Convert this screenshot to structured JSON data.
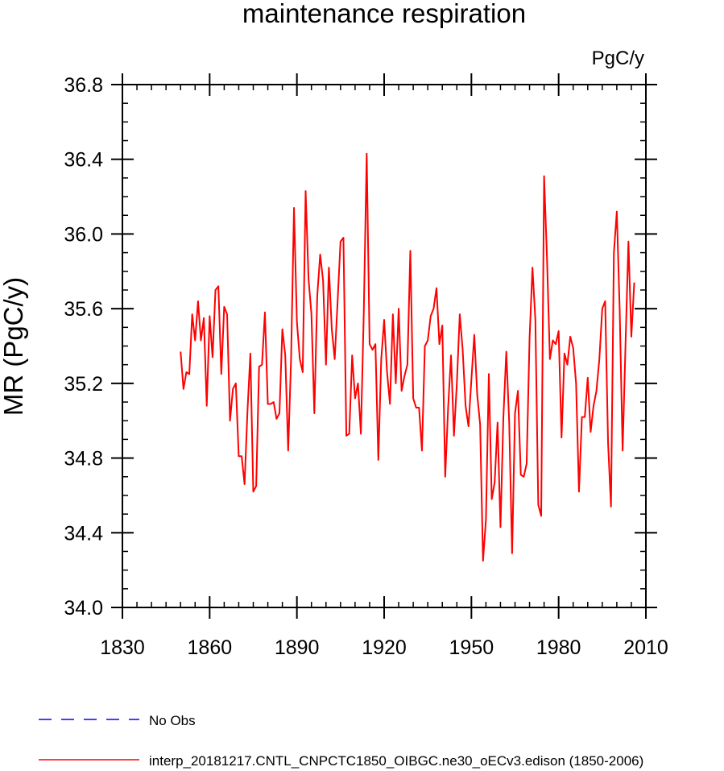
{
  "chart_data": {
    "type": "line",
    "title": "maintenance respiration",
    "units_label": "PgC/y",
    "ylabel": "MR  (PgC/y)",
    "xlabel": "",
    "xlim": [
      1830,
      2010
    ],
    "ylim": [
      34.0,
      36.8
    ],
    "x_ticks": [
      1830,
      1860,
      1890,
      1920,
      1950,
      1980,
      2010
    ],
    "x_tick_labels": [
      "1830",
      "1860",
      "1890",
      "1920",
      "1950",
      "1980",
      "2010"
    ],
    "x_minor_step": 5,
    "y_ticks": [
      34.0,
      34.4,
      34.8,
      35.2,
      35.6,
      36.0,
      36.4,
      36.8
    ],
    "y_tick_labels": [
      "34.0",
      "34.4",
      "34.8",
      "35.2",
      "35.6",
      "36.0",
      "36.4",
      "36.8"
    ],
    "y_minor_step": 0.1,
    "grid": false,
    "legend_position": "bottom-left",
    "legend": [
      {
        "label": "No Obs",
        "color": "#0000ff",
        "style": "dashed"
      },
      {
        "label": "interp_20181217.CNTL_CNPCTC1850_OIBGC.ne30_oECv3.edison (1850-2006)",
        "color": "#ff0000",
        "style": "solid"
      }
    ],
    "series": [
      {
        "name": "interp_20181217.CNTL_CNPCTC1850_OIBGC.ne30_oECv3.edison (1850-2006)",
        "color": "#ff0000",
        "x_start": 1850,
        "x_step": 1,
        "values": [
          35.37,
          35.17,
          35.26,
          35.25,
          35.57,
          35.43,
          35.64,
          35.43,
          35.55,
          35.08,
          35.56,
          35.34,
          35.7,
          35.72,
          35.25,
          35.61,
          35.57,
          35.0,
          35.17,
          35.2,
          34.81,
          34.81,
          34.66,
          35.05,
          35.36,
          34.62,
          34.65,
          35.29,
          35.3,
          35.58,
          35.09,
          35.09,
          35.1,
          35.01,
          35.04,
          35.49,
          35.35,
          34.84,
          35.33,
          36.14,
          35.53,
          35.33,
          35.26,
          36.23,
          35.76,
          35.57,
          35.04,
          35.67,
          35.89,
          35.75,
          35.3,
          35.82,
          35.49,
          35.33,
          35.64,
          35.96,
          35.98,
          34.92,
          34.93,
          35.35,
          35.12,
          35.2,
          34.93,
          35.58,
          36.43,
          35.41,
          35.38,
          35.41,
          34.79,
          35.33,
          35.54,
          35.26,
          35.09,
          35.57,
          35.2,
          35.6,
          35.16,
          35.24,
          35.3,
          35.91,
          35.12,
          35.07,
          35.07,
          34.84,
          35.4,
          35.43,
          35.56,
          35.6,
          35.71,
          35.41,
          35.51,
          34.7,
          35.07,
          35.35,
          34.92,
          35.2,
          35.57,
          35.38,
          35.08,
          34.97,
          35.22,
          35.46,
          35.14,
          34.98,
          34.25,
          34.47,
          35.25,
          34.58,
          34.67,
          34.99,
          34.43,
          35.02,
          35.37,
          34.99,
          34.29,
          35.04,
          35.16,
          34.71,
          34.7,
          34.77,
          35.44,
          35.82,
          35.54,
          34.55,
          34.49,
          36.31,
          35.87,
          35.33,
          35.43,
          35.41,
          35.48,
          34.91,
          35.36,
          35.3,
          35.45,
          35.39,
          35.2,
          34.62,
          35.02,
          35.02,
          35.23,
          34.94,
          35.08,
          35.16,
          35.33,
          35.6,
          35.64,
          34.88,
          34.54,
          35.9,
          36.12,
          35.59,
          34.84,
          35.41,
          35.96,
          35.45,
          35.74
        ]
      },
      {
        "name": "No Obs",
        "color": "#0000ff",
        "values": []
      }
    ]
  }
}
